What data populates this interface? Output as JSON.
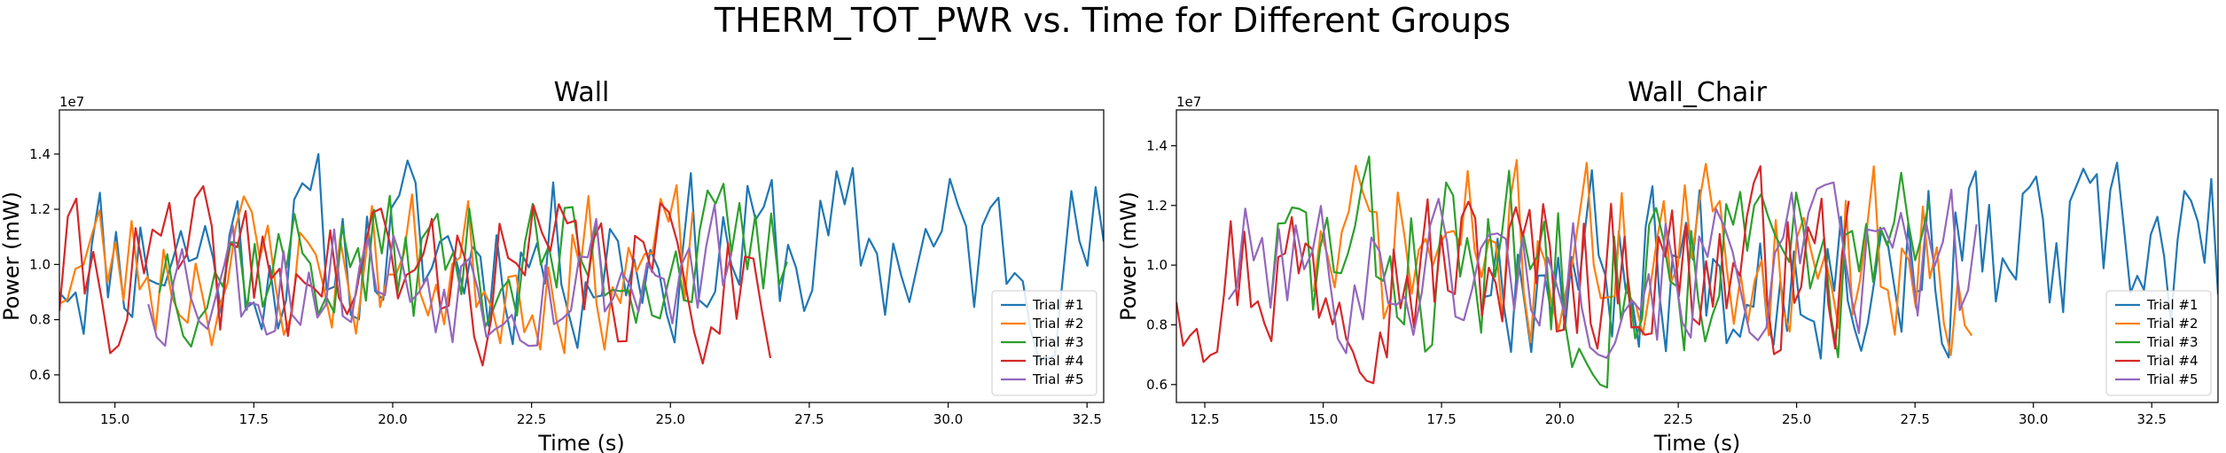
{
  "suptitle": "THERM_TOT_PWR vs. Time for Different Groups",
  "colors": [
    "#1f77b4",
    "#ff7f0e",
    "#2ca02c",
    "#d62728",
    "#9467bd"
  ],
  "chart_data": [
    {
      "type": "line",
      "title": "Wall",
      "xlabel": "Time (s)",
      "ylabel": "Power (mW)",
      "y_offset_label": "1e7",
      "xlim": [
        14.0,
        32.8
      ],
      "ylim": [
        5000000.0,
        15600000.0
      ],
      "xticks": [
        15.0,
        17.5,
        20.0,
        22.5,
        25.0,
        27.5,
        30.0,
        32.5
      ],
      "xtick_labels": [
        "15.0",
        "17.5",
        "20.0",
        "22.5",
        "25.0",
        "27.5",
        "30.0",
        "32.5"
      ],
      "yticks": [
        6000000.0,
        8000000.0,
        10000000.0,
        12000000.0,
        14000000.0
      ],
      "ytick_labels": [
        "0.6",
        "0.8",
        "1.0",
        "1.2",
        "1.4"
      ],
      "legend_loc": "lower-right",
      "grid": false,
      "series": [
        {
          "name": "Trial #1",
          "start": 14.0,
          "end": 32.8,
          "min": 6000000.0,
          "max": 15000000.0,
          "n": 130,
          "seed": 11
        },
        {
          "name": "Trial #2",
          "start": 14.0,
          "end": 25.4,
          "min": 5900000.0,
          "max": 13900000.0,
          "n": 80,
          "seed": 23
        },
        {
          "name": "Trial #3",
          "start": 15.8,
          "end": 27.1,
          "min": 6500000.0,
          "max": 13800000.0,
          "n": 80,
          "seed": 37
        },
        {
          "name": "Trial #4",
          "start": 14.0,
          "end": 26.8,
          "min": 5600000.0,
          "max": 13600000.0,
          "n": 85,
          "seed": 41
        },
        {
          "name": "Trial #5",
          "start": 15.6,
          "end": 26.1,
          "min": 6100000.0,
          "max": 13300000.0,
          "n": 70,
          "seed": 53
        }
      ]
    },
    {
      "type": "line",
      "title": "Wall_Chair",
      "xlabel": "Time (s)",
      "ylabel": "Power (mW)",
      "y_offset_label": "1e7",
      "xlim": [
        11.9,
        33.9
      ],
      "ylim": [
        5400000.0,
        15200000.0
      ],
      "xticks": [
        12.5,
        15.0,
        17.5,
        20.0,
        22.5,
        25.0,
        27.5,
        30.0,
        32.5
      ],
      "xtick_labels": [
        "12.5",
        "15.0",
        "17.5",
        "20.0",
        "22.5",
        "25.0",
        "27.5",
        "30.0",
        "32.5"
      ],
      "yticks": [
        6000000.0,
        8000000.0,
        10000000.0,
        12000000.0,
        14000000.0
      ],
      "ytick_labels": [
        "0.6",
        "0.8",
        "1.0",
        "1.2",
        "1.4"
      ],
      "legend_loc": "lower-right",
      "grid": false,
      "series": [
        {
          "name": "Trial #1",
          "start": 18.4,
          "end": 33.9,
          "min": 6000000.0,
          "max": 14500000.0,
          "n": 110,
          "seed": 67
        },
        {
          "name": "Trial #2",
          "start": 14.8,
          "end": 28.7,
          "min": 6200000.0,
          "max": 14600000.0,
          "n": 95,
          "seed": 71
        },
        {
          "name": "Trial #3",
          "start": 13.9,
          "end": 27.8,
          "min": 5700000.0,
          "max": 14500000.0,
          "n": 95,
          "seed": 83
        },
        {
          "name": "Trial #4",
          "start": 11.9,
          "end": 26.1,
          "min": 5900000.0,
          "max": 14000000.0,
          "n": 100,
          "seed": 97
        },
        {
          "name": "Trial #5",
          "start": 13.0,
          "end": 28.8,
          "min": 6300000.0,
          "max": 13500000.0,
          "n": 90,
          "seed": 101
        }
      ]
    }
  ]
}
